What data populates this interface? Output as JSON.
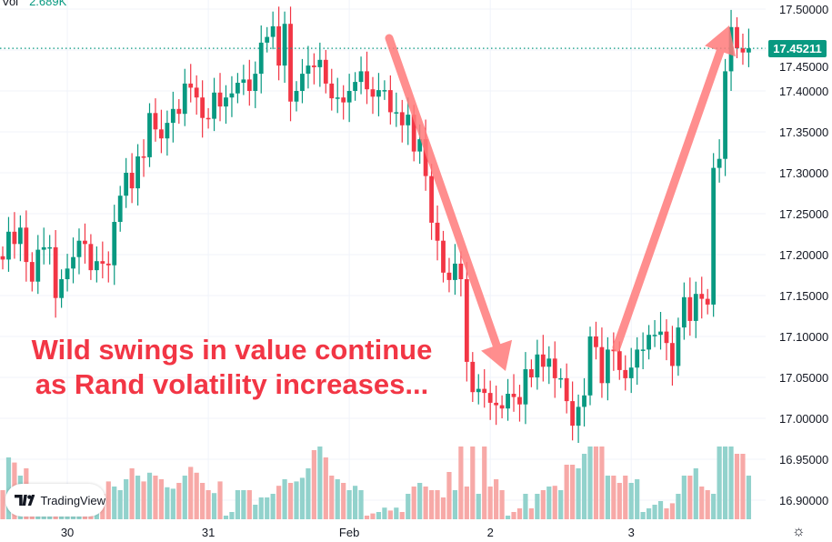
{
  "legend": {
    "label": "Vol",
    "value": "2.689K"
  },
  "last_price_label": "17.45211",
  "annotation": {
    "line1": "Wild swings in value continue",
    "line2": "as Rand volatility increases..."
  },
  "logo_text": "TradingView",
  "colors": {
    "up": "#089981",
    "down": "#f23645",
    "up_volume": "#92d2cc",
    "down_volume": "#f7a9a7",
    "arrow": "#ff7b7b",
    "grid": "#f0f3fa"
  },
  "chart_data": {
    "type": "candlestick",
    "ylim": [
      16.87,
      17.51
    ],
    "yticks": [
      "17.50000",
      "17.45000",
      "17.40000",
      "17.35000",
      "17.30000",
      "17.25000",
      "17.20000",
      "17.15000",
      "17.10000",
      "17.05000",
      "17.00000",
      "16.95000",
      "16.90000"
    ],
    "ytick_values": [
      17.5,
      17.45,
      17.4,
      17.35,
      17.3,
      17.25,
      17.2,
      17.15,
      17.1,
      17.05,
      17.0,
      16.95,
      16.9
    ],
    "xticks": [
      {
        "label": "30",
        "index": 11
      },
      {
        "label": "31",
        "index": 35
      },
      {
        "label": "Feb",
        "index": 59
      },
      {
        "label": "2",
        "index": 83
      },
      {
        "label": "3",
        "index": 107
      }
    ],
    "last_price": 17.45211,
    "close": [
      17.194,
      17.228,
      17.213,
      17.233,
      17.191,
      17.167,
      17.206,
      17.209,
      17.209,
      17.147,
      17.17,
      17.183,
      17.197,
      17.217,
      17.213,
      17.181,
      17.192,
      17.189,
      17.187,
      17.24,
      17.272,
      17.3,
      17.281,
      17.32,
      17.319,
      17.373,
      17.353,
      17.342,
      17.361,
      17.378,
      17.372,
      17.409,
      17.404,
      17.392,
      17.367,
      17.366,
      17.398,
      17.381,
      17.392,
      17.397,
      17.41,
      17.414,
      17.4,
      17.421,
      17.459,
      17.466,
      17.479,
      17.431,
      17.482,
      17.387,
      17.4,
      17.421,
      17.431,
      17.429,
      17.438,
      17.409,
      17.391,
      17.392,
      17.386,
      17.4,
      17.411,
      17.424,
      17.402,
      17.393,
      17.401,
      17.401,
      17.374,
      17.374,
      17.358,
      17.371,
      17.326,
      17.341,
      17.296,
      17.239,
      17.217,
      17.178,
      17.169,
      17.189,
      17.17,
      17.069,
      17.032,
      17.036,
      17.031,
      17.019,
      17.016,
      17.012,
      17.03,
      17.026,
      17.017,
      17.06,
      17.05,
      17.078,
      17.063,
      17.073,
      17.049,
      17.049,
      17.021,
      16.991,
      17.014,
      17.028,
      17.1,
      17.087,
      17.043,
      17.084,
      17.082,
      17.059,
      17.049,
      17.062,
      17.084,
      17.084,
      17.102,
      17.102,
      17.106,
      17.092,
      17.064,
      17.111,
      17.148,
      17.119,
      17.152,
      17.146,
      17.139,
      17.306,
      17.317,
      17.424,
      17.478,
      17.452,
      17.447,
      17.45211
    ],
    "volume": [
      40,
      85,
      78,
      60,
      70,
      30,
      20,
      25,
      30,
      25,
      20,
      15,
      8,
      10,
      12,
      30,
      40,
      35,
      52,
      45,
      40,
      55,
      70,
      60,
      52,
      64,
      60,
      55,
      44,
      42,
      50,
      60,
      72,
      64,
      50,
      40,
      36,
      52,
      5,
      10,
      40,
      40,
      40,
      20,
      30,
      30,
      35,
      46,
      55,
      50,
      52,
      57,
      70,
      95,
      100,
      85,
      60,
      55,
      50,
      40,
      46,
      40,
      5,
      8,
      10,
      16,
      12,
      16,
      10,
      35,
      45,
      50,
      45,
      40,
      40,
      30,
      65,
      40,
      100,
      45,
      100,
      35,
      100,
      45,
      55,
      40,
      5,
      10,
      15,
      35,
      15,
      35,
      40,
      45,
      46,
      40,
      75,
      75,
      70,
      90,
      100,
      100,
      100,
      60,
      60,
      50,
      60,
      50,
      55,
      10,
      15,
      20,
      25,
      15,
      22,
      35,
      60,
      60,
      70,
      45,
      40,
      35,
      100,
      100,
      100,
      90,
      90,
      60
    ],
    "annotations": [
      "down-arrow",
      "up-arrow"
    ]
  }
}
